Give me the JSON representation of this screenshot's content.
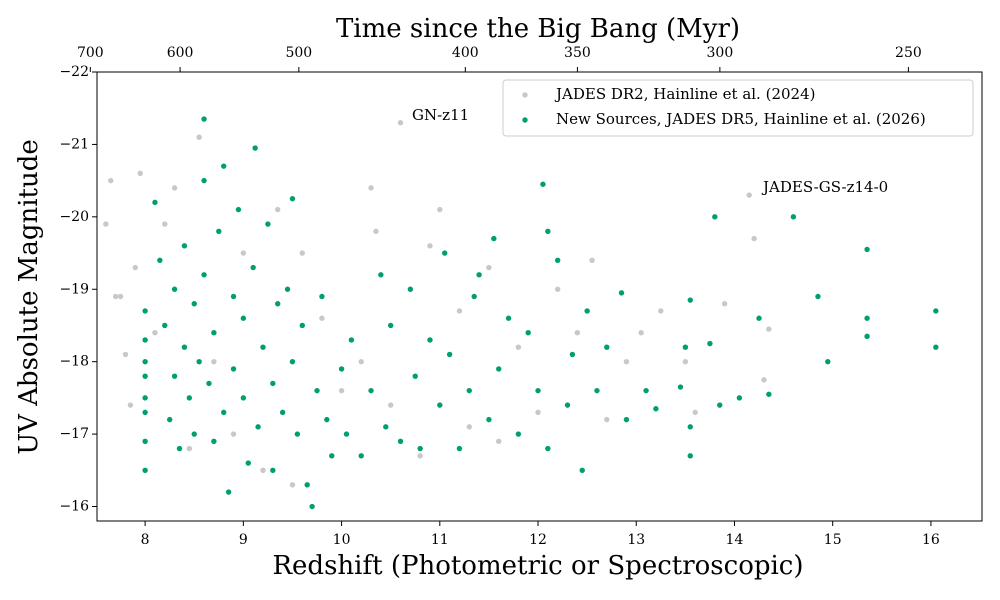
{
  "chart_data": {
    "type": "scatter",
    "title": "Time since the Big Bang (Myr)",
    "xlabel": "Redshift (Photometric or Spectroscopic)",
    "ylabel": "UV Absolute Magnitude",
    "xlim": [
      7.51,
      16.52
    ],
    "ylim": [
      -15.8,
      -22
    ],
    "xticks": [
      8,
      9,
      10,
      11,
      12,
      13,
      14,
      15,
      16
    ],
    "yticks": [
      {
        "value": -22,
        "label": "−22"
      },
      {
        "value": -21,
        "label": "−21"
      },
      {
        "value": -20,
        "label": "−20"
      },
      {
        "value": -19,
        "label": "−19"
      },
      {
        "value": -18,
        "label": "−18"
      },
      {
        "value": -17,
        "label": "−17"
      },
      {
        "value": -16,
        "label": "−16"
      }
    ],
    "x2ticks": [
      700,
      600,
      500,
      400,
      350,
      300,
      250
    ],
    "legend": "upper right",
    "annotations": [
      "GN-z11",
      "JADES-GS-z14-0"
    ],
    "series": [
      {
        "name": "JADES DR2, Hainline et al. (2024)",
        "color": "#c8c8c8",
        "x": [
          7.6,
          7.65,
          7.7,
          7.75,
          7.8,
          7.85,
          7.9,
          7.95,
          8.1,
          8.2,
          8.3,
          8.45,
          8.55,
          8.7,
          8.9,
          9.0,
          9.2,
          9.35,
          9.5,
          9.6,
          9.8,
          10.0,
          10.2,
          10.3,
          10.35,
          10.5,
          10.6,
          10.8,
          10.9,
          11.0,
          11.2,
          11.3,
          11.5,
          11.6,
          11.8,
          12.0,
          12.2,
          12.4,
          12.55,
          12.7,
          12.9,
          13.05,
          13.25,
          13.5,
          13.6,
          13.9,
          14.15,
          14.2,
          14.3,
          14.35
        ],
        "values": [
          -19.9,
          -20.5,
          -18.9,
          -18.9,
          -18.1,
          -17.4,
          -19.3,
          -20.6,
          -18.4,
          -19.9,
          -20.4,
          -16.8,
          -21.1,
          -18.0,
          -17.0,
          -19.5,
          -16.5,
          -20.1,
          -16.3,
          -19.5,
          -18.6,
          -17.6,
          -18.0,
          -20.4,
          -19.8,
          -17.4,
          -21.3,
          -16.7,
          -19.6,
          -20.1,
          -18.7,
          -17.1,
          -19.3,
          -16.9,
          -18.2,
          -17.3,
          -19.0,
          -18.4,
          -19.4,
          -17.2,
          -18.0,
          -18.4,
          -18.7,
          -18.0,
          -17.3,
          -18.8,
          -20.3,
          -19.7,
          -17.75,
          -18.45
        ]
      },
      {
        "name": "New Sources, JADES DR5, Hainline et al. (2026)",
        "color": "#009e73",
        "x": [
          8.0,
          8.0,
          8.0,
          8.0,
          8.0,
          8.0,
          8.0,
          8.0,
          8.1,
          8.15,
          8.2,
          8.25,
          8.3,
          8.3,
          8.35,
          8.4,
          8.4,
          8.45,
          8.5,
          8.5,
          8.55,
          8.6,
          8.6,
          8.6,
          8.65,
          8.7,
          8.7,
          8.75,
          8.8,
          8.8,
          8.85,
          8.9,
          8.9,
          8.95,
          9.0,
          9.0,
          9.05,
          9.1,
          9.12,
          9.15,
          9.2,
          9.25,
          9.3,
          9.3,
          9.35,
          9.4,
          9.45,
          9.5,
          9.5,
          9.55,
          9.6,
          9.65,
          9.7,
          9.75,
          9.8,
          9.85,
          9.9,
          10.0,
          10.05,
          10.1,
          10.2,
          10.3,
          10.4,
          10.45,
          10.5,
          10.6,
          10.7,
          10.75,
          10.8,
          10.9,
          11.0,
          11.05,
          11.1,
          11.2,
          11.3,
          11.35,
          11.4,
          11.5,
          11.55,
          11.6,
          11.7,
          11.8,
          11.9,
          12.0,
          12.05,
          12.1,
          12.1,
          12.2,
          12.3,
          12.35,
          12.45,
          12.5,
          12.6,
          12.7,
          12.85,
          12.9,
          13.1,
          13.2,
          13.45,
          13.5,
          13.55,
          13.55,
          13.55,
          13.75,
          13.8,
          13.85,
          14.05,
          14.25,
          14.35,
          14.6,
          14.85,
          14.95,
          15.35,
          15.35,
          15.35,
          16.05,
          16.05
        ],
        "values": [
          -18.7,
          -18.3,
          -17.8,
          -17.3,
          -16.9,
          -16.5,
          -18.0,
          -17.5,
          -20.2,
          -19.4,
          -18.5,
          -17.2,
          -19.0,
          -17.8,
          -16.8,
          -18.2,
          -19.6,
          -17.5,
          -18.8,
          -17.0,
          -18.0,
          -21.35,
          -20.5,
          -19.2,
          -17.7,
          -16.9,
          -18.4,
          -19.8,
          -20.7,
          -17.3,
          -16.2,
          -18.9,
          -17.9,
          -20.1,
          -17.5,
          -18.6,
          -16.6,
          -19.3,
          -20.95,
          -17.1,
          -18.2,
          -19.9,
          -17.7,
          -16.5,
          -18.8,
          -17.3,
          -19.0,
          -18.0,
          -20.25,
          -17.0,
          -18.5,
          -16.3,
          -16.0,
          -17.6,
          -18.9,
          -17.2,
          -16.7,
          -17.9,
          -17.0,
          -18.3,
          -16.7,
          -17.6,
          -19.2,
          -17.1,
          -18.5,
          -16.9,
          -19.0,
          -17.8,
          -16.8,
          -18.3,
          -17.4,
          -19.5,
          -18.1,
          -16.8,
          -17.6,
          -18.9,
          -19.2,
          -17.2,
          -19.7,
          -17.9,
          -18.6,
          -17.0,
          -18.4,
          -17.6,
          -20.45,
          -19.8,
          -16.8,
          -19.4,
          -17.4,
          -18.1,
          -16.5,
          -18.7,
          -17.6,
          -18.2,
          -18.95,
          -17.2,
          -17.6,
          -17.35,
          -17.65,
          -18.2,
          -18.85,
          -16.7,
          -17.1,
          -18.25,
          -20.0,
          -17.4,
          -17.5,
          -18.6,
          -17.55,
          -20.0,
          -18.9,
          -18.0,
          -19.55,
          -18.6,
          -18.35,
          -18.7,
          -18.2
        ]
      }
    ]
  }
}
